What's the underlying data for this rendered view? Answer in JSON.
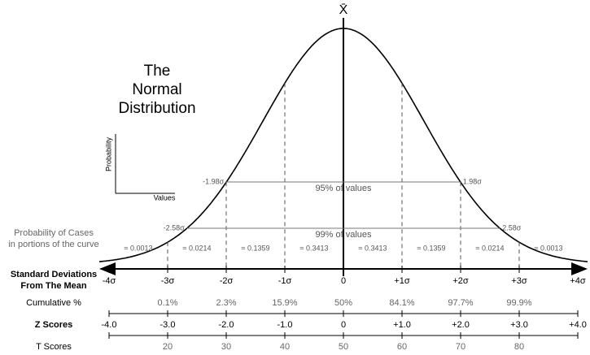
{
  "mean_label": "X̄",
  "title": [
    "The",
    "Normal",
    "Distribution"
  ],
  "inset": {
    "y_label": "Probability",
    "x_label": "Values"
  },
  "intervals": [
    {
      "left": "-1.98σ",
      "right": "1.98σ",
      "label": "95% of values"
    },
    {
      "left": "-2.58σ",
      "right": "2.58σ",
      "label": "99% of values"
    }
  ],
  "probability_label": [
    "Probability of Cases",
    "in portions of the curve"
  ],
  "probabilities": [
    "≈ 0.0013",
    "≈ 0.0214",
    "≈ 0.1359",
    "≈ 0.3413",
    "≈ 0.3413",
    "≈ 0.1359",
    "≈ 0.0214",
    "≈ 0.0013"
  ],
  "rows": [
    {
      "label": [
        "Standard Deviations",
        "From The Mean"
      ],
      "values": [
        "-4σ",
        "-3σ",
        "-2σ",
        "-1σ",
        "0",
        "+1σ",
        "+2σ",
        "+3σ",
        "+4σ"
      ]
    },
    {
      "label": [
        "Cumulative %"
      ],
      "values": [
        "0.1%",
        "2.3%",
        "15.9%",
        "50%",
        "84.1%",
        "97.7%",
        "99.9%"
      ]
    },
    {
      "label": [
        "Z Scores"
      ],
      "values": [
        "-4.0",
        "-3.0",
        "-2.0",
        "-1.0",
        "0",
        "+1.0",
        "+2.0",
        "+3.0",
        "+4.0"
      ]
    },
    {
      "label": [
        "T Scores"
      ],
      "values": [
        "20",
        "30",
        "40",
        "50",
        "60",
        "70",
        "80"
      ]
    }
  ]
}
